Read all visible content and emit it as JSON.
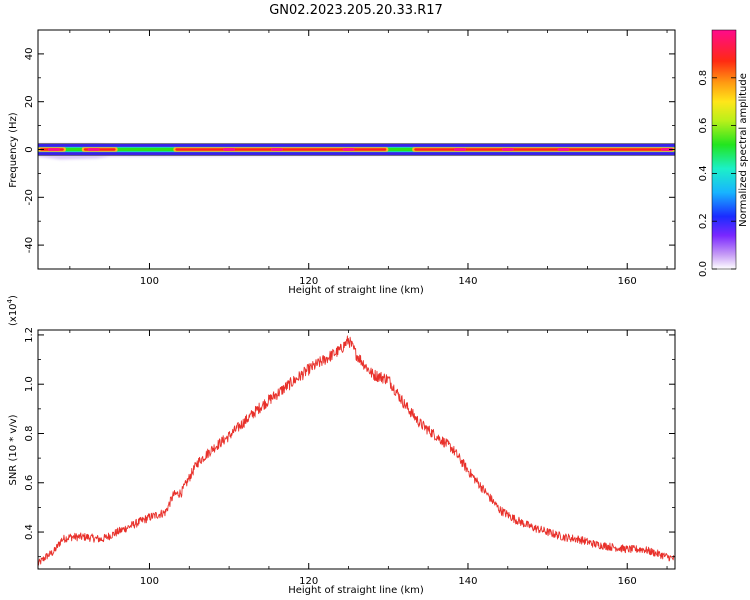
{
  "figure": {
    "title": "GN02.2023.205.20.33.R17"
  },
  "chart_data": [
    {
      "type": "heatmap",
      "xlabel": "Height of straight line (km)",
      "ylabel": "Frequency (Hz)",
      "xlim": [
        86,
        166
      ],
      "ylim": [
        -50,
        50
      ],
      "xticks": [
        100,
        120,
        140,
        160
      ],
      "yticks": [
        40,
        20,
        0,
        -20,
        -40
      ],
      "colorbar": {
        "label": "Normalized spectral amplitude",
        "range": [
          0,
          1
        ],
        "ticks": [
          "0.0",
          "0.2",
          "0.4",
          "0.6",
          "0.8"
        ],
        "colormap": "rainbow (white-purple-blue-cyan-green-yellow-orange-red-magenta)"
      },
      "band_center_hz": 0,
      "band_halfwidth_hz": 2,
      "band_peaks_x": [
        88,
        93,
        110,
        116,
        125,
        139,
        145,
        152,
        165
      ],
      "band_min_x": [
        86,
        90.5,
        97,
        131
      ]
    },
    {
      "type": "line",
      "xlabel": "Height of straight line (km)",
      "ylabel": "SNR (10 * v/v)",
      "y_multiplier": "(x10^4)",
      "xlim": [
        86,
        166
      ],
      "ylim": [
        0.25,
        1.22
      ],
      "xticks": [
        100,
        120,
        140,
        160
      ],
      "yticks": [
        0.4,
        0.6,
        0.8,
        1.0,
        1.2
      ],
      "grid": false,
      "series": [
        {
          "color": "#e8302a",
          "x": [
            86,
            87,
            88,
            89,
            90,
            92,
            94,
            96,
            98,
            100,
            102,
            103,
            104,
            105,
            106,
            108,
            110,
            112,
            114,
            116,
            118,
            120,
            122,
            124,
            125,
            126,
            127,
            128,
            130,
            132,
            134,
            136,
            138,
            140,
            142,
            144,
            146,
            148,
            150,
            152,
            154,
            156,
            158,
            160,
            162,
            164,
            166
          ],
          "y": [
            0.27,
            0.3,
            0.32,
            0.37,
            0.38,
            0.38,
            0.37,
            0.4,
            0.43,
            0.46,
            0.48,
            0.55,
            0.56,
            0.62,
            0.68,
            0.74,
            0.79,
            0.85,
            0.91,
            0.96,
            1.01,
            1.06,
            1.1,
            1.14,
            1.18,
            1.12,
            1.08,
            1.04,
            1.02,
            0.92,
            0.84,
            0.79,
            0.74,
            0.65,
            0.57,
            0.49,
            0.45,
            0.42,
            0.4,
            0.38,
            0.37,
            0.35,
            0.34,
            0.33,
            0.33,
            0.31,
            0.29
          ]
        }
      ]
    }
  ]
}
